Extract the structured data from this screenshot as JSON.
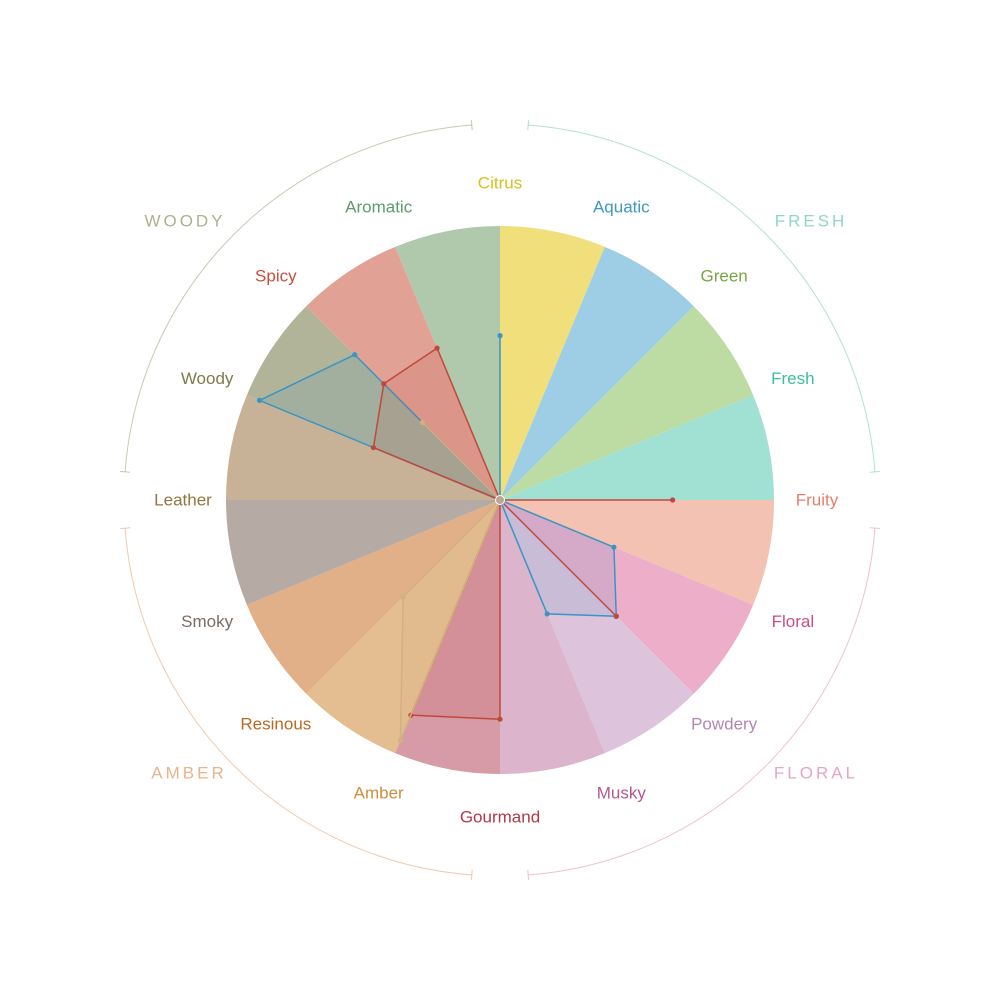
{
  "chart_data": {
    "type": "radar",
    "title": "",
    "scale": [
      0,
      1
    ],
    "families": [
      {
        "name": "FRESH",
        "color": "#8fd6c6",
        "categories": [
          "Citrus",
          "Aquatic",
          "Green",
          "Fresh"
        ]
      },
      {
        "name": "FLORAL",
        "color": "#e7a6bd",
        "categories": [
          "Fruity",
          "Floral",
          "Powdery",
          "Musky"
        ]
      },
      {
        "name": "AMBER",
        "color": "#e8b48a",
        "categories": [
          "Gourmand",
          "Amber",
          "Resinous",
          "Smoky"
        ]
      },
      {
        "name": "WOODY",
        "color": "#b1b191",
        "categories": [
          "Leather",
          "Woody",
          "Spicy",
          "Aromatic"
        ]
      }
    ],
    "categories": [
      {
        "name": "Citrus",
        "label_color": "#d9bf1c",
        "fill": "#efd965"
      },
      {
        "name": "Aquatic",
        "label_color": "#3f97c2",
        "fill": "#8cc5e0"
      },
      {
        "name": "Green",
        "label_color": "#7aa443",
        "fill": "#b2d693"
      },
      {
        "name": "Fresh",
        "label_color": "#3ebca3",
        "fill": "#91dccb"
      },
      {
        "name": "Fruity",
        "label_color": "#e77e67",
        "fill": "#f2b7a5"
      },
      {
        "name": "Floral",
        "label_color": "#d04c86",
        "fill": "#e9a0bf"
      },
      {
        "name": "Powdery",
        "label_color": "#b486b5",
        "fill": "#d7b8d5"
      },
      {
        "name": "Musky",
        "label_color": "#b1588f",
        "fill": "#d6a7c2"
      },
      {
        "name": "Gourmand",
        "label_color": "#b0394b",
        "fill": "#cf8a98"
      },
      {
        "name": "Amber",
        "label_color": "#d08d3c",
        "fill": "#dfb17c"
      },
      {
        "name": "Resinous",
        "label_color": "#bb6a25",
        "fill": "#dca273"
      },
      {
        "name": "Smoky",
        "label_color": "#7a6d63",
        "fill": "#a99c94"
      },
      {
        "name": "Leather",
        "label_color": "#957441",
        "fill": "#bea585"
      },
      {
        "name": "Woody",
        "label_color": "#7e7a4d",
        "fill": "#a3a787"
      },
      {
        "name": "Spicy",
        "label_color": "#c84e3c",
        "fill": "#dc9282"
      },
      {
        "name": "Aromatic",
        "label_color": "#5e9a6c",
        "fill": "#a2bf9f"
      }
    ],
    "series": [
      {
        "color": "#3a94c4",
        "values": [
          0.6,
          0,
          0,
          0,
          0,
          0.45,
          0.6,
          0.45,
          0,
          0,
          0,
          0,
          0,
          0.95,
          0.75,
          0
        ]
      },
      {
        "color": "#c0483b",
        "values": [
          0,
          0,
          0,
          0,
          0.63,
          0,
          0.6,
          0,
          0.8,
          0.85,
          0,
          0,
          0,
          0.5,
          0.6,
          0.6
        ]
      },
      {
        "color": "#d4b07e",
        "values": [
          0,
          0,
          0,
          0,
          0,
          0,
          0,
          0,
          0,
          0.95,
          0.5,
          0,
          0,
          0,
          0.4,
          0
        ]
      }
    ]
  }
}
